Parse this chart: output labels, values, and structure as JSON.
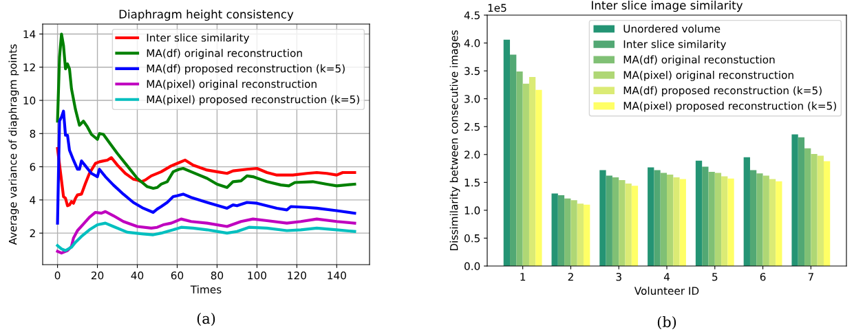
{
  "chart_data": [
    {
      "type": "line",
      "title": "Diaphragm height consistency",
      "xlabel": "Times",
      "ylabel": "Average variance of diaphragm points",
      "xlim": [
        -7.45,
        156.45
      ],
      "ylim": [
        0.1,
        14.6
      ],
      "xticks": [
        0,
        20,
        40,
        60,
        80,
        100,
        120,
        140
      ],
      "yticks": [
        2,
        4,
        6,
        8,
        10,
        12,
        14
      ],
      "grid": true,
      "legend": "top right",
      "annotations": [
        "(a)"
      ],
      "series": [
        {
          "name": "Inter slice similarity",
          "color": "#ff0000",
          "x": [
            0,
            3,
            4,
            5,
            6,
            7,
            8,
            9,
            10,
            12,
            14,
            16,
            19,
            21,
            23,
            25,
            27,
            30,
            34,
            38,
            40,
            42,
            44,
            47,
            52,
            57,
            60,
            64,
            68,
            75,
            80,
            85,
            88,
            95,
            100,
            105,
            110,
            118,
            125,
            130,
            135,
            140,
            143,
            149
          ],
          "values": [
            7.1,
            4.2,
            4.1,
            3.65,
            3.7,
            3.9,
            3.8,
            4.1,
            4.3,
            4.35,
            5.0,
            5.6,
            6.2,
            6.3,
            6.35,
            6.4,
            6.55,
            6.1,
            5.6,
            5.25,
            5.2,
            5.1,
            5.2,
            5.45,
            5.7,
            6.05,
            6.2,
            6.4,
            6.1,
            5.8,
            5.7,
            5.6,
            5.75,
            5.85,
            5.9,
            5.65,
            5.5,
            5.5,
            5.6,
            5.65,
            5.6,
            5.5,
            5.65,
            5.65
          ]
        },
        {
          "name": "MA(df) original reconstruction",
          "color": "#008000",
          "x": [
            0,
            1,
            2,
            3,
            4,
            5,
            6,
            7,
            9,
            11,
            13,
            15,
            17,
            20,
            21,
            23,
            26,
            30,
            35,
            40,
            45,
            48,
            50,
            52,
            55,
            58,
            61,
            63,
            67,
            75,
            80,
            85,
            88,
            92,
            95,
            98,
            105,
            112,
            116,
            119,
            128,
            135,
            140,
            149
          ],
          "values": [
            8.75,
            12.6,
            14.0,
            13.3,
            11.9,
            12.2,
            11.9,
            10.7,
            9.45,
            8.5,
            8.75,
            8.4,
            7.95,
            7.65,
            8.0,
            7.95,
            7.45,
            6.8,
            6.05,
            5.3,
            4.8,
            4.7,
            4.75,
            4.95,
            5.1,
            5.7,
            5.85,
            5.9,
            5.7,
            5.3,
            4.95,
            4.75,
            5.1,
            5.15,
            5.45,
            5.4,
            5.1,
            4.9,
            4.85,
            5.05,
            5.1,
            4.95,
            4.85,
            4.95
          ]
        },
        {
          "name": "MA(df) proposed reconstruction (k=5)",
          "color": "#0000ff",
          "x": [
            0,
            1,
            2,
            3,
            4,
            5,
            6,
            8,
            10,
            11,
            12,
            14,
            17,
            20,
            21,
            24,
            28,
            33,
            38,
            43,
            48,
            50,
            52,
            55,
            58,
            60,
            63,
            67,
            75,
            85,
            88,
            90,
            95,
            100,
            110,
            115,
            117,
            125,
            130,
            140,
            149
          ],
          "values": [
            2.6,
            8.75,
            9.0,
            9.35,
            7.9,
            7.9,
            7.0,
            6.4,
            5.85,
            5.85,
            6.35,
            6.05,
            5.6,
            5.4,
            5.85,
            5.4,
            4.9,
            4.35,
            3.85,
            3.5,
            3.25,
            3.45,
            3.6,
            3.85,
            4.2,
            4.25,
            4.35,
            4.15,
            3.85,
            3.5,
            3.7,
            3.65,
            3.85,
            3.8,
            3.5,
            3.4,
            3.6,
            3.55,
            3.5,
            3.35,
            3.2
          ]
        },
        {
          "name": "MA(pixel) original reconstruction",
          "color": "#bf00bf",
          "x": [
            0,
            2,
            5,
            7,
            8,
            10,
            13,
            16,
            19,
            22,
            24,
            28,
            33,
            40,
            47,
            50,
            53,
            57,
            62,
            67,
            75,
            85,
            92,
            98,
            105,
            115,
            122,
            130,
            140,
            149
          ],
          "values": [
            0.9,
            0.8,
            0.95,
            1.2,
            1.7,
            2.15,
            2.55,
            2.95,
            3.25,
            3.2,
            3.3,
            3.05,
            2.7,
            2.4,
            2.3,
            2.35,
            2.5,
            2.6,
            2.85,
            2.7,
            2.6,
            2.4,
            2.7,
            2.85,
            2.75,
            2.6,
            2.7,
            2.85,
            2.7,
            2.6
          ]
        },
        {
          "name": "MA(pixel) proposed reconstruction (k=5)",
          "color": "#00bfbf",
          "x": [
            0,
            2,
            4,
            7,
            9,
            12,
            16,
            20,
            24,
            28,
            35,
            43,
            48,
            52,
            58,
            62,
            68,
            75,
            85,
            90,
            96,
            105,
            115,
            122,
            130,
            140,
            149
          ],
          "values": [
            1.25,
            1.05,
            0.95,
            1.15,
            1.45,
            1.8,
            2.2,
            2.5,
            2.6,
            2.4,
            2.05,
            1.95,
            1.9,
            2.0,
            2.2,
            2.35,
            2.3,
            2.2,
            2.0,
            2.1,
            2.35,
            2.3,
            2.15,
            2.2,
            2.3,
            2.2,
            2.1
          ]
        }
      ]
    },
    {
      "type": "bar",
      "title": "Inter slice image similarity",
      "xlabel": "Volunteer ID",
      "ylabel": "Dissimilarity between consecutive images",
      "categories": [
        "1",
        "2",
        "3",
        "4",
        "5",
        "6",
        "7"
      ],
      "ylim": [
        0,
        4.5
      ],
      "yticks": [
        {
          "value": 0,
          "label": "0.0"
        },
        0.5,
        {
          "value": 1,
          "label": "1.0"
        },
        1.5,
        {
          "value": 2,
          "label": "2.0"
        },
        2.5,
        {
          "value": 3,
          "label": "3.0"
        },
        3.5,
        {
          "value": 4,
          "label": "4.0"
        },
        4.5
      ],
      "grid": false,
      "legend": "top right",
      "annotations": [
        "1e5",
        "(b)"
      ],
      "series": [
        {
          "name": "Unordered volume",
          "color": "#249474",
          "values": [
            4.06,
            1.3,
            1.72,
            1.77,
            1.89,
            1.95,
            2.36
          ]
        },
        {
          "name": "Inter slice similarity",
          "color": "#52a874",
          "values": [
            3.79,
            1.27,
            1.62,
            1.72,
            1.78,
            1.72,
            2.31
          ]
        },
        {
          "name": "MA(df) original reconstuction",
          "color": "#80c075",
          "values": [
            3.49,
            1.21,
            1.59,
            1.67,
            1.69,
            1.66,
            2.11
          ]
        },
        {
          "name": "MA(pixel) original reconstruction",
          "color": "#afd775",
          "values": [
            3.27,
            1.18,
            1.54,
            1.64,
            1.67,
            1.62,
            2.01
          ]
        },
        {
          "name": "MA(df) proposed reconstruction (k=5)",
          "color": "#dbeb75",
          "values": [
            3.39,
            1.12,
            1.48,
            1.59,
            1.61,
            1.56,
            1.98
          ]
        },
        {
          "name": "MA(pixel) proposed reconstruction (k=5)",
          "color": "#ffff66",
          "values": [
            3.16,
            1.1,
            1.44,
            1.56,
            1.57,
            1.52,
            1.88
          ]
        }
      ]
    }
  ]
}
